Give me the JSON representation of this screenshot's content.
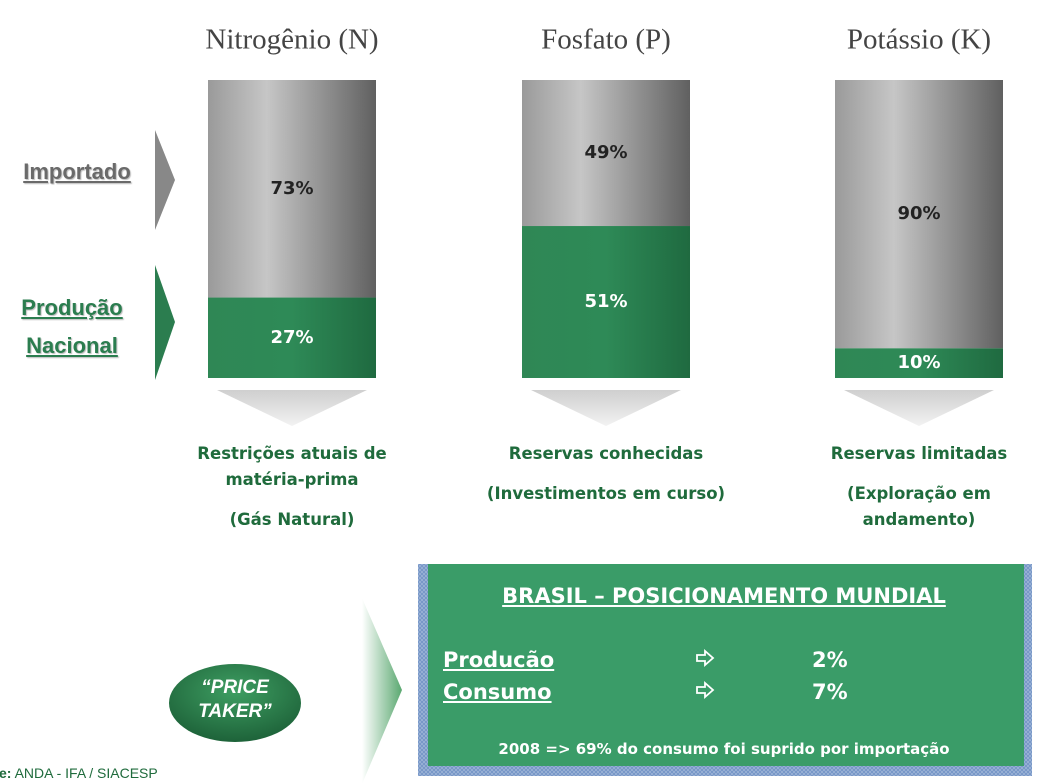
{
  "chart_data": {
    "type": "stacked_bar",
    "categories": [
      "Nitrogênio (N)",
      "Fosfato (P)",
      "Potássio (K)"
    ],
    "series": [
      {
        "name": "Importado",
        "color": "#a3a3a3",
        "values": [
          73,
          49,
          90
        ],
        "value_labels": [
          "73%",
          "49%",
          "90%"
        ]
      },
      {
        "name": "Produção Nacional",
        "color": "#2b7d4f",
        "values": [
          27,
          51,
          10
        ],
        "value_labels": [
          "27%",
          "51%",
          "10%"
        ]
      }
    ],
    "ylim": [
      0,
      100
    ]
  },
  "notes": [
    {
      "headline": "Restrições atuais de matéria-prima",
      "detail": "(Gás Natural)"
    },
    {
      "headline": "Reservas conhecidas",
      "detail": "(Investimentos em curso)"
    },
    {
      "headline": "Reservas limitadas",
      "detail": "(Exploração em andamento)"
    }
  ],
  "badge": "“PRICE TAKER”",
  "panel": {
    "title": "BRASIL – POSICIONAMENTO MUNDIAL",
    "rows": [
      {
        "label": "Producão",
        "value": "2%"
      },
      {
        "label": "Consumo",
        "value": "7%"
      }
    ],
    "footer": "2008 => 69% do consumo foi suprido por importação"
  },
  "source": {
    "label": "e:",
    "text": "ANDA - IFA / SIACESP"
  }
}
